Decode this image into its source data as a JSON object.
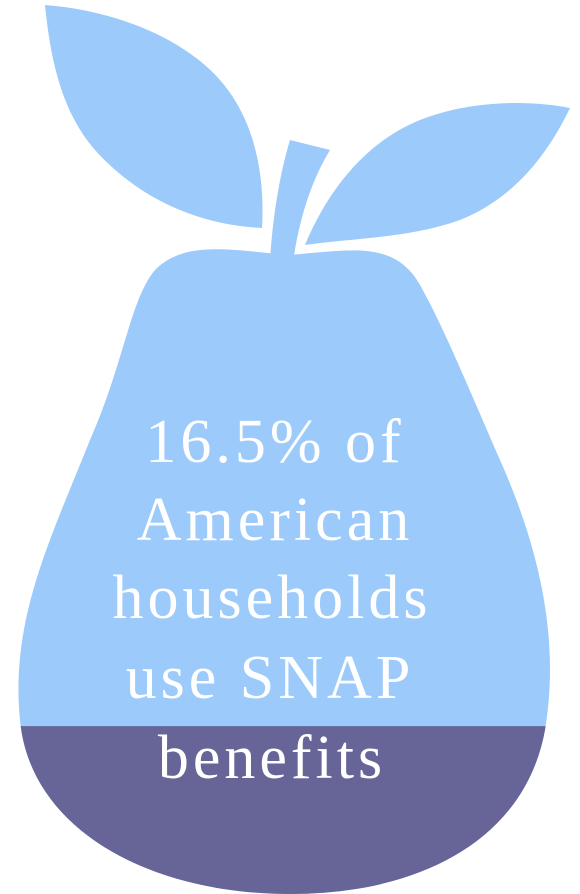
{
  "statistic": {
    "lines": [
      "16.5% of",
      "American",
      "households",
      "use SNAP",
      "benefits"
    ],
    "fill_level_percent": 16.5
  },
  "colors": {
    "pear_light": "#9ccafb",
    "pear_dark": "#676598",
    "text": "#ffffff",
    "background": "#ffffff"
  }
}
